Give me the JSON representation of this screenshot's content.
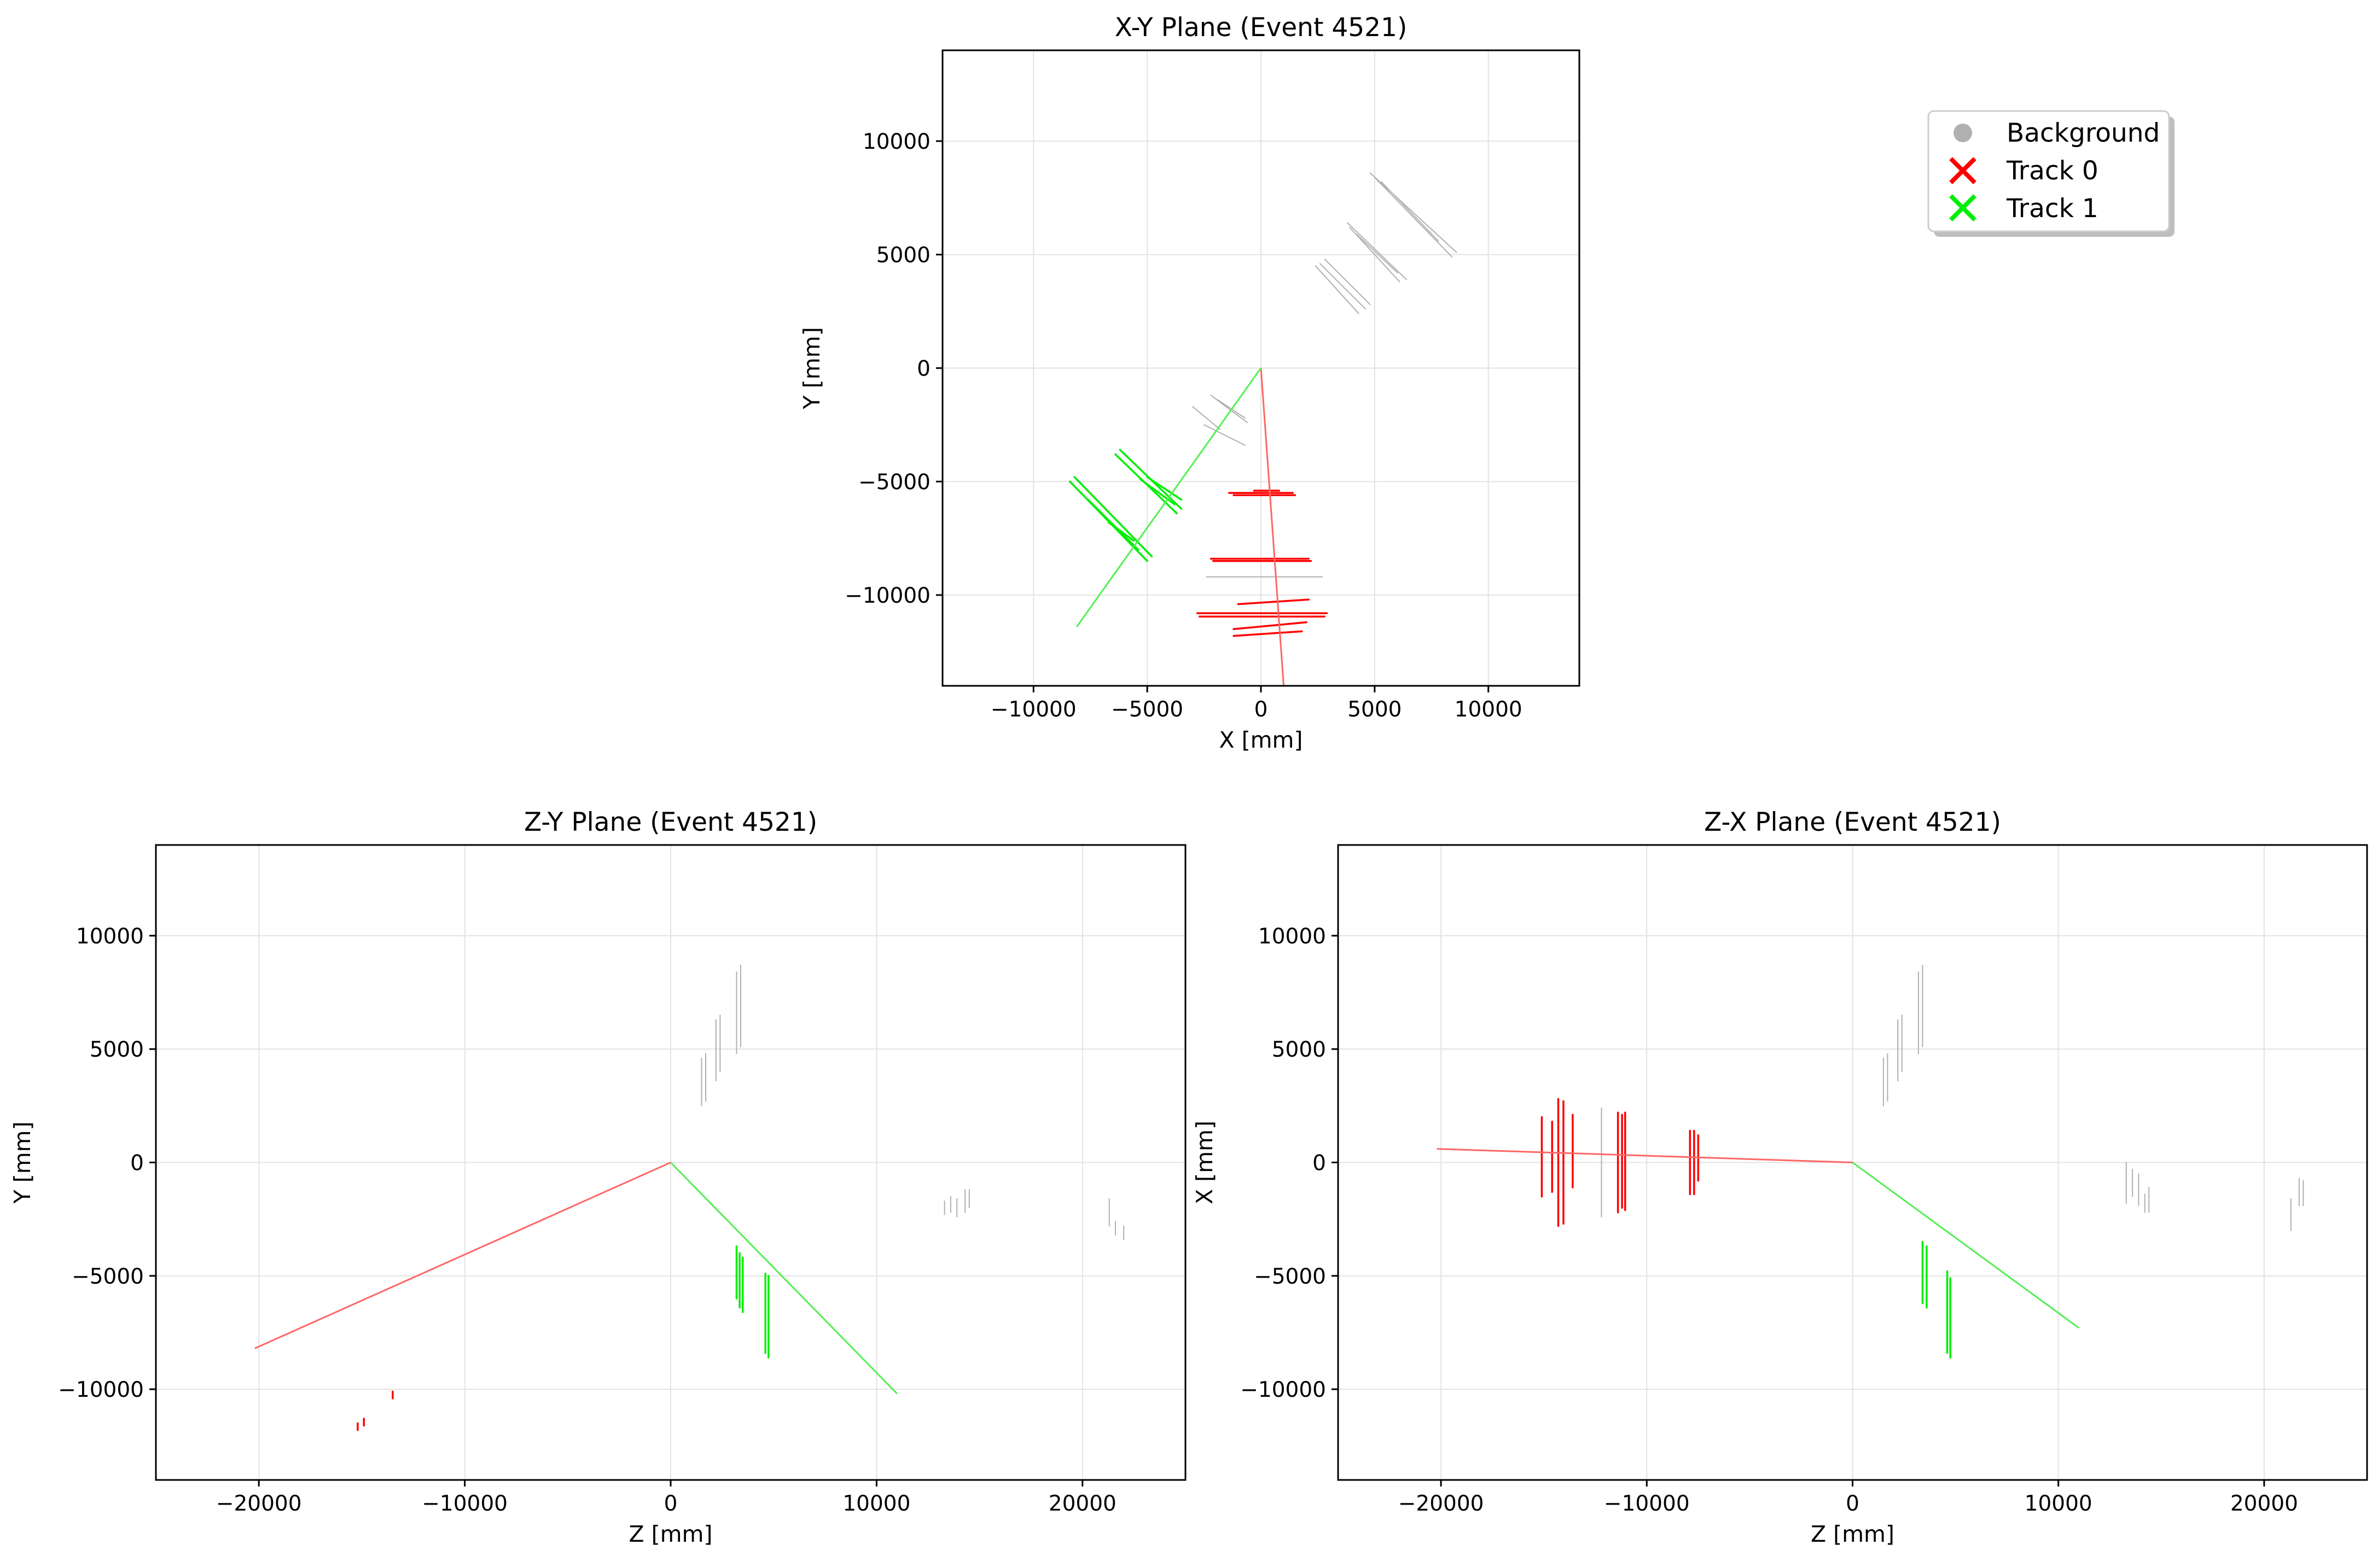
{
  "figure": {
    "colors": {
      "background": "#ffffff",
      "track0": "#ff0000",
      "track1": "#00ee00",
      "track0_line": "#ff6666",
      "track1_line": "#55ee55",
      "background_hits": "#b0b0b0",
      "grid": "#e3e3e3"
    }
  },
  "legend": {
    "placement": "top-right",
    "entries": [
      {
        "label": "Background",
        "marker": "circle",
        "color": "#b0b0b0"
      },
      {
        "label": "Track 0",
        "marker": "x",
        "color": "#ff0000"
      },
      {
        "label": "Track 1",
        "marker": "x",
        "color": "#00ee00"
      }
    ]
  },
  "chart_data": [
    {
      "type": "line",
      "id": "xy",
      "title": "X-Y Plane (Event 4521)",
      "xlabel": "X [mm]",
      "ylabel": "Y [mm]",
      "xlim": [
        -14000,
        14000
      ],
      "ylim": [
        -14000,
        14000
      ],
      "xticks": [
        -10000,
        -5000,
        0,
        5000,
        10000
      ],
      "yticks": [
        -10000,
        -5000,
        0,
        5000,
        10000
      ],
      "xtick_labels": [
        "−10000",
        "−5000",
        "0",
        "5000",
        "10000"
      ],
      "ytick_labels": [
        "−10000",
        "−5000",
        "0",
        "5000",
        "10000"
      ],
      "grid": true,
      "track_lines": [
        {
          "name": "Track 0",
          "color": "#ff6666",
          "points": [
            [
              0,
              0
            ],
            [
              1000,
              -14000
            ]
          ]
        },
        {
          "name": "Track 1",
          "color": "#55ee55",
          "points": [
            [
              0,
              0
            ],
            [
              -8100,
              -11400
            ]
          ]
        }
      ],
      "hit_segments": [
        {
          "series": "Track 1",
          "color": "#00ee00",
          "segs": [
            [
              -8400,
              -5000,
              -5000,
              -8500
            ],
            [
              -8200,
              -4800,
              -4800,
              -8300
            ],
            [
              -7600,
              -5800,
              -5400,
              -8000
            ],
            [
              -6400,
              -3800,
              -3700,
              -6400
            ],
            [
              -6200,
              -3600,
              -3500,
              -6200
            ],
            [
              -5300,
              -4900,
              -3800,
              -6000
            ],
            [
              -5000,
              -4800,
              -3500,
              -5800
            ],
            [
              -6700,
              -6800,
              -5600,
              -7600
            ]
          ]
        },
        {
          "series": "Track 0",
          "color": "#ff0000",
          "segs": [
            [
              -1400,
              -5500,
              1400,
              -5500
            ],
            [
              -1200,
              -5600,
              1500,
              -5600
            ],
            [
              -300,
              -5400,
              800,
              -5400
            ],
            [
              -2200,
              -8400,
              2100,
              -8400
            ],
            [
              -2100,
              -8500,
              2200,
              -8500
            ],
            [
              -2800,
              -10800,
              2900,
              -10800
            ],
            [
              -2700,
              -10950,
              2800,
              -10950
            ],
            [
              -1200,
              -11500,
              2000,
              -11200
            ],
            [
              -1200,
              -11800,
              1800,
              -11600
            ],
            [
              -1000,
              -10400,
              2100,
              -10200
            ]
          ]
        },
        {
          "series": "Background",
          "color": "#b0b0b0",
          "segs": [
            [
              2600,
              4600,
              4600,
              2600
            ],
            [
              2800,
              4800,
              4800,
              2800
            ],
            [
              2400,
              4500,
              4300,
              2400
            ],
            [
              3800,
              6400,
              6400,
              3900
            ],
            [
              3900,
              6200,
              6100,
              3800
            ],
            [
              4200,
              5900,
              6000,
              4200
            ],
            [
              4800,
              8600,
              8600,
              5100
            ],
            [
              5000,
              8400,
              8400,
              4900
            ],
            [
              5300,
              8200,
              7800,
              5600
            ],
            [
              -3000,
              -1700,
              -1800,
              -2700
            ],
            [
              -2200,
              -1200,
              -600,
              -2400
            ],
            [
              -1900,
              -1400,
              -700,
              -2200
            ],
            [
              -2500,
              -2500,
              -700,
              -3400
            ],
            [
              -2400,
              -9200,
              2700,
              -9200
            ]
          ]
        }
      ]
    },
    {
      "type": "line",
      "id": "zy",
      "title": "Z-Y Plane (Event 4521)",
      "xlabel": "Z [mm]",
      "ylabel": "Y [mm]",
      "xlim": [
        -25000,
        25000
      ],
      "ylim": [
        -14000,
        14000
      ],
      "xticks": [
        -20000,
        -10000,
        0,
        10000,
        20000
      ],
      "yticks": [
        -10000,
        -5000,
        0,
        5000,
        10000
      ],
      "xtick_labels": [
        "−20000",
        "−10000",
        "0",
        "10000",
        "20000"
      ],
      "ytick_labels": [
        "−10000",
        "−5000",
        "0",
        "5000",
        "10000"
      ],
      "grid": true,
      "track_lines": [
        {
          "name": "Track 0",
          "color": "#ff6666",
          "points": [
            [
              0,
              0
            ],
            [
              -20200,
              -8200
            ]
          ]
        },
        {
          "name": "Track 1",
          "color": "#55ee55",
          "points": [
            [
              0,
              0
            ],
            [
              11000,
              -10200
            ]
          ]
        }
      ],
      "hit_segments": [
        {
          "series": "Track 1",
          "color": "#00ee00",
          "segs": [
            [
              3200,
              -3700,
              3200,
              -6000
            ],
            [
              3350,
              -4000,
              3350,
              -6400
            ],
            [
              3500,
              -4200,
              3500,
              -6600
            ],
            [
              4600,
              -4900,
              4600,
              -8400
            ],
            [
              4750,
              -5000,
              4750,
              -8600
            ]
          ]
        },
        {
          "series": "Track 0",
          "color": "#ff0000",
          "segs": [
            [
              -15200,
              -11500,
              -15200,
              -11800
            ],
            [
              -14900,
              -11300,
              -14900,
              -11600
            ],
            [
              -13500,
              -10100,
              -13500,
              -10400
            ]
          ]
        },
        {
          "series": "Background",
          "color": "#b0b0b0",
          "segs": [
            [
              1500,
              2500,
              1500,
              4600
            ],
            [
              1700,
              2700,
              1700,
              4800
            ],
            [
              2200,
              3600,
              2200,
              6300
            ],
            [
              2400,
              4000,
              2400,
              6500
            ],
            [
              3200,
              4800,
              3200,
              8400
            ],
            [
              3400,
              5100,
              3400,
              8700
            ],
            [
              13300,
              -1700,
              13300,
              -2300
            ],
            [
              13600,
              -1500,
              13600,
              -2200
            ],
            [
              13900,
              -1600,
              13900,
              -2400
            ],
            [
              14300,
              -1200,
              14300,
              -2200
            ],
            [
              14500,
              -1200,
              14500,
              -2000
            ],
            [
              21300,
              -1600,
              21300,
              -2800
            ],
            [
              21600,
              -2600,
              21600,
              -3200
            ],
            [
              22000,
              -2800,
              22000,
              -3400
            ]
          ]
        }
      ]
    },
    {
      "type": "line",
      "id": "zx",
      "title": "Z-X Plane (Event 4521)",
      "xlabel": "Z [mm]",
      "ylabel": "X [mm]",
      "xlim": [
        -25000,
        25000
      ],
      "ylim": [
        -14000,
        14000
      ],
      "xticks": [
        -20000,
        -10000,
        0,
        10000,
        20000
      ],
      "yticks": [
        -10000,
        -5000,
        0,
        5000,
        10000
      ],
      "xtick_labels": [
        "−20000",
        "−10000",
        "0",
        "10000",
        "20000"
      ],
      "ytick_labels": [
        "−10000",
        "−5000",
        "0",
        "5000",
        "10000"
      ],
      "grid": true,
      "track_lines": [
        {
          "name": "Track 0",
          "color": "#ff6666",
          "points": [
            [
              0,
              0
            ],
            [
              -20200,
              600
            ]
          ]
        },
        {
          "name": "Track 1",
          "color": "#55ee55",
          "points": [
            [
              0,
              0
            ],
            [
              11000,
              -7300
            ]
          ]
        }
      ],
      "hit_segments": [
        {
          "series": "Track 0",
          "color": "#ff0000",
          "segs": [
            [
              -15100,
              2000,
              -15100,
              -1500
            ],
            [
              -14600,
              1800,
              -14600,
              -1300
            ],
            [
              -14300,
              2800,
              -14300,
              -2800
            ],
            [
              -14050,
              2700,
              -14050,
              -2700
            ],
            [
              -13600,
              2100,
              -13600,
              -1100
            ],
            [
              -11400,
              2200,
              -11400,
              -2200
            ],
            [
              -11200,
              2100,
              -11200,
              -2000
            ],
            [
              -11050,
              2200,
              -11050,
              -2100
            ],
            [
              -7900,
              1400,
              -7900,
              -1400
            ],
            [
              -7700,
              1400,
              -7700,
              -1400
            ],
            [
              -7500,
              1200,
              -7500,
              -800
            ]
          ]
        },
        {
          "series": "Track 1",
          "color": "#00ee00",
          "segs": [
            [
              3400,
              -3500,
              3400,
              -6200
            ],
            [
              3600,
              -3700,
              3600,
              -6400
            ],
            [
              4600,
              -4800,
              4600,
              -8400
            ],
            [
              4750,
              -5100,
              4750,
              -8600
            ]
          ]
        },
        {
          "series": "Background",
          "color": "#b0b0b0",
          "segs": [
            [
              -12200,
              2400,
              -12200,
              -2400
            ],
            [
              1500,
              2500,
              1500,
              4600
            ],
            [
              1700,
              2700,
              1700,
              4800
            ],
            [
              2200,
              3600,
              2200,
              6300
            ],
            [
              2400,
              4000,
              2400,
              6500
            ],
            [
              3200,
              4800,
              3200,
              8400
            ],
            [
              3400,
              5100,
              3400,
              8700
            ],
            [
              13300,
              0,
              13300,
              -1800
            ],
            [
              13600,
              -300,
              13600,
              -1500
            ],
            [
              13900,
              -500,
              13900,
              -1900
            ],
            [
              14200,
              -1400,
              14200,
              -2200
            ],
            [
              14400,
              -1100,
              14400,
              -2200
            ],
            [
              21300,
              -1600,
              21300,
              -3000
            ],
            [
              21700,
              -700,
              21700,
              -1900
            ],
            [
              21900,
              -800,
              21900,
              -1900
            ]
          ]
        }
      ]
    }
  ]
}
